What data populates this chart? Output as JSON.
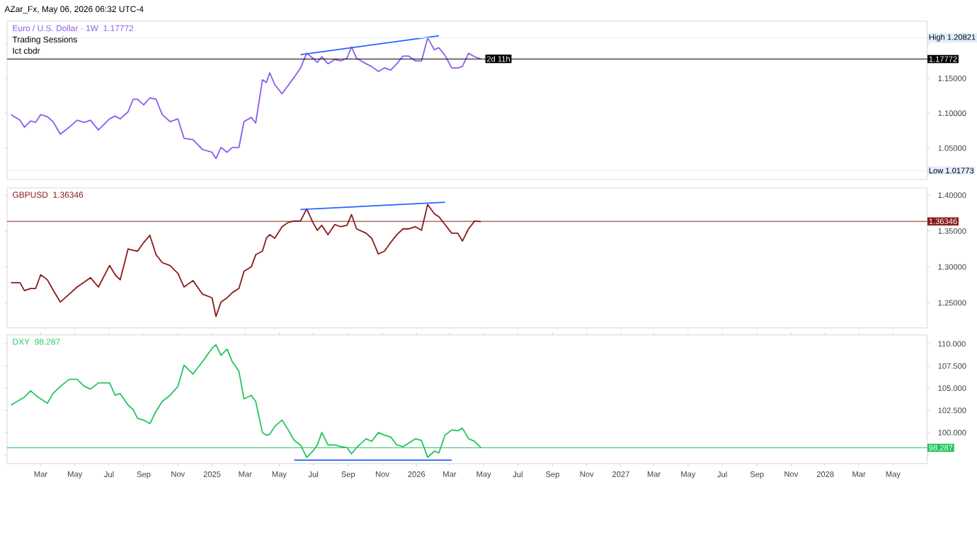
{
  "chart_data": [
    {
      "type": "line",
      "title": "AZar_Fx, May 06, 2026 06:32 UTC-4",
      "subtitle": "1.17772",
      "legend": "top left",
      "tick_labels": "y",
      "annotations": [
        "Trading Sessions",
        "Ict cbdr",
        {
          "text": "2d 11h",
          "x": "2026-04-26",
          "y": 1.178
        }
      ],
      "xlim": [
        "2024-01-01",
        "2028-07-01"
      ],
      "ylim": [
        1.005,
        1.232
      ],
      "yticks": [
        {
          "value": 1.05,
          "label": "1.05000"
        },
        {
          "value": 1.1,
          "label": "1.10000"
        },
        {
          "value": 1.15,
          "label": "1.15000"
        },
        {
          "value": 1.2,
          "label": null
        }
      ],
      "x": [
        "2024-01-08",
        "2024-01-24",
        "2024-02-01",
        "2024-02-12",
        "2024-02-21",
        "2024-03-01",
        "2024-03-13",
        "2024-03-23",
        "2024-04-05",
        "2024-04-21",
        "2024-05-05",
        "2024-05-18",
        "2024-05-29",
        "2024-06-12",
        "2024-07-02",
        "2024-07-12",
        "2024-07-21",
        "2024-08-04",
        "2024-08-13",
        "2024-08-21",
        "2024-09-01",
        "2024-09-12",
        "2024-09-23",
        "2024-10-04",
        "2024-10-18",
        "2024-11-01",
        "2024-11-12",
        "2024-11-28",
        "2024-12-15",
        "2025-01-01",
        "2025-01-08",
        "2025-01-17",
        "2025-01-28",
        "2025-02-06",
        "2025-02-18",
        "2025-02-27",
        "2025-03-12",
        "2025-03-20",
        "2025-04-01",
        "2025-04-08",
        "2025-04-14",
        "2025-04-23",
        "2025-05-06",
        "2025-05-17",
        "2025-05-28",
        "2025-06-08",
        "2025-06-19",
        "2025-06-30",
        "2025-07-08",
        "2025-07-16",
        "2025-07-27",
        "2025-08-08",
        "2025-08-19",
        "2025-08-30",
        "2025-09-07",
        "2025-09-16",
        "2025-10-03",
        "2025-10-13",
        "2025-10-25",
        "2025-11-05",
        "2025-11-16",
        "2025-11-27",
        "2025-12-08",
        "2025-12-18",
        "2025-12-30",
        "2026-01-10",
        "2026-01-21",
        "2026-02-02",
        "2026-02-10",
        "2026-02-21",
        "2026-03-05",
        "2026-03-16",
        "2026-03-24",
        "2026-04-04",
        "2026-04-15",
        "2026-04-26"
      ],
      "series": [
        {
          "name": "Euro / U.S. Dollar · 1W",
          "color": "#8a5cf0",
          "values": [
            1.098,
            1.09,
            1.08,
            1.089,
            1.087,
            1.098,
            1.095,
            1.088,
            1.07,
            1.08,
            1.09,
            1.087,
            1.09,
            1.076,
            1.092,
            1.096,
            1.092,
            1.102,
            1.12,
            1.12,
            1.112,
            1.122,
            1.12,
            1.098,
            1.088,
            1.092,
            1.064,
            1.062,
            1.048,
            1.044,
            1.035,
            1.051,
            1.044,
            1.051,
            1.051,
            1.088,
            1.094,
            1.086,
            1.148,
            1.144,
            1.158,
            1.141,
            1.128,
            1.14,
            1.152,
            1.165,
            1.186,
            1.179,
            1.173,
            1.181,
            1.171,
            1.177,
            1.175,
            1.179,
            1.195,
            1.179,
            1.171,
            1.167,
            1.16,
            1.165,
            1.162,
            1.171,
            1.182,
            1.182,
            1.175,
            1.175,
            1.208,
            1.191,
            1.194,
            1.183,
            1.165,
            1.165,
            1.167,
            1.186,
            1.181,
            1.178
          ]
        },
        {
          "type": "line",
          "color": "#2962ff",
          "x": [
            "2025-06-08",
            "2026-02-10"
          ],
          "values": [
            1.184,
            1.211
          ]
        }
      ],
      "ref_lines": [
        {
          "axis": "y",
          "value": 1.20821,
          "label": "High 1.20821",
          "color": "#e3eefb"
        },
        {
          "axis": "y",
          "value": 1.17772,
          "label": "1.17772",
          "color": "#000000"
        },
        {
          "axis": "y",
          "value": 1.01773,
          "label": "Low 1.01773",
          "color": "#e3eefb"
        }
      ]
    },
    {
      "type": "line",
      "subtitle": "1.36346",
      "legend": "top left",
      "tick_labels": "y",
      "xlim": [
        "2024-01-01",
        "2028-07-01"
      ],
      "ylim": [
        1.215,
        1.41
      ],
      "yticks": [
        {
          "value": 1.25,
          "label": "1.25000"
        },
        {
          "value": 1.3,
          "label": "1.30000"
        },
        {
          "value": 1.35,
          "label": "1.35000"
        },
        {
          "value": 1.4,
          "label": "1.40000"
        }
      ],
      "x": [
        "2024-01-08",
        "2024-01-24",
        "2024-02-01",
        "2024-02-12",
        "2024-02-21",
        "2024-03-01",
        "2024-03-13",
        "2024-03-23",
        "2024-04-05",
        "2024-04-21",
        "2024-05-05",
        "2024-05-18",
        "2024-05-29",
        "2024-06-12",
        "2024-07-02",
        "2024-07-12",
        "2024-07-21",
        "2024-08-04",
        "2024-08-13",
        "2024-08-21",
        "2024-09-01",
        "2024-09-12",
        "2024-09-23",
        "2024-10-04",
        "2024-10-18",
        "2024-11-01",
        "2024-11-12",
        "2024-11-28",
        "2024-12-15",
        "2025-01-01",
        "2025-01-08",
        "2025-01-17",
        "2025-01-28",
        "2025-02-06",
        "2025-02-18",
        "2025-02-27",
        "2025-03-12",
        "2025-03-20",
        "2025-04-01",
        "2025-04-08",
        "2025-04-14",
        "2025-04-23",
        "2025-05-06",
        "2025-05-17",
        "2025-05-28",
        "2025-06-08",
        "2025-06-19",
        "2025-06-30",
        "2025-07-08",
        "2025-07-16",
        "2025-07-27",
        "2025-08-08",
        "2025-08-19",
        "2025-08-30",
        "2025-09-07",
        "2025-09-16",
        "2025-10-03",
        "2025-10-13",
        "2025-10-25",
        "2025-11-05",
        "2025-11-16",
        "2025-11-27",
        "2025-12-08",
        "2025-12-18",
        "2025-12-30",
        "2026-01-10",
        "2026-01-21",
        "2026-02-02",
        "2026-02-10",
        "2026-02-21",
        "2026-03-05",
        "2026-03-16",
        "2026-03-24",
        "2026-04-04",
        "2026-04-15",
        "2026-04-26"
      ],
      "series": [
        {
          "name": "GBPUSD",
          "color": "#8b1a1a",
          "values": [
            1.278,
            1.278,
            1.267,
            1.27,
            1.27,
            1.289,
            1.282,
            1.268,
            1.251,
            1.262,
            1.272,
            1.279,
            1.285,
            1.272,
            1.302,
            1.289,
            1.282,
            1.325,
            1.323,
            1.322,
            1.334,
            1.344,
            1.317,
            1.306,
            1.302,
            1.291,
            1.272,
            1.281,
            1.262,
            1.257,
            1.231,
            1.251,
            1.257,
            1.264,
            1.27,
            1.294,
            1.3,
            1.317,
            1.322,
            1.34,
            1.345,
            1.34,
            1.356,
            1.362,
            1.364,
            1.364,
            1.381,
            1.362,
            1.351,
            1.358,
            1.345,
            1.359,
            1.356,
            1.358,
            1.373,
            1.353,
            1.347,
            1.34,
            1.318,
            1.322,
            1.334,
            1.345,
            1.353,
            1.353,
            1.356,
            1.351,
            1.387,
            1.374,
            1.37,
            1.359,
            1.347,
            1.347,
            1.336,
            1.353,
            1.364,
            1.363
          ]
        },
        {
          "type": "line",
          "color": "#2962ff",
          "x": [
            "2025-06-08",
            "2026-02-21"
          ],
          "values": [
            1.38,
            1.39
          ]
        }
      ],
      "ref_lines": [
        {
          "axis": "y",
          "value": 1.36346,
          "label": "1.36346",
          "color": "#8b1a1a"
        }
      ]
    },
    {
      "type": "line",
      "subtitle": "98.287",
      "legend": "top left",
      "xlim": [
        "2024-01-01",
        "2028-07-01"
      ],
      "ylim": [
        96.5,
        111
      ],
      "xticks": [
        {
          "value": "2024-03-01",
          "label": "Mar"
        },
        {
          "value": "2024-05-01",
          "label": "May"
        },
        {
          "value": "2024-07-01",
          "label": "Jul"
        },
        {
          "value": "2024-09-01",
          "label": "Sep"
        },
        {
          "value": "2024-11-01",
          "label": "Nov"
        },
        {
          "value": "2025-01-01",
          "label": "2025"
        },
        {
          "value": "2025-03-01",
          "label": "Mar"
        },
        {
          "value": "2025-05-01",
          "label": "May"
        },
        {
          "value": "2025-07-01",
          "label": "Jul"
        },
        {
          "value": "2025-09-01",
          "label": "Sep"
        },
        {
          "value": "2025-11-01",
          "label": "Nov"
        },
        {
          "value": "2026-01-01",
          "label": "2026"
        },
        {
          "value": "2026-03-01",
          "label": "Mar"
        },
        {
          "value": "2026-05-01",
          "label": "May"
        },
        {
          "value": "2026-07-01",
          "label": "Jul"
        },
        {
          "value": "2026-09-01",
          "label": "Sep"
        },
        {
          "value": "2026-11-01",
          "label": "Nov"
        },
        {
          "value": "2027-01-01",
          "label": "2027"
        },
        {
          "value": "2027-03-01",
          "label": "Mar"
        },
        {
          "value": "2027-05-01",
          "label": "May"
        },
        {
          "value": "2027-07-01",
          "label": "Jul"
        },
        {
          "value": "2027-09-01",
          "label": "Sep"
        },
        {
          "value": "2027-11-01",
          "label": "Nov"
        },
        {
          "value": "2028-01-01",
          "label": "2028"
        },
        {
          "value": "2028-03-01",
          "label": "Mar"
        },
        {
          "value": "2028-05-01",
          "label": "May"
        }
      ],
      "yticks": [
        {
          "value": 97.5,
          "label": null
        },
        {
          "value": 100,
          "label": "100.000"
        },
        {
          "value": 102.5,
          "label": "102.500"
        },
        {
          "value": 105,
          "label": "105.000"
        },
        {
          "value": 107.5,
          "label": "107.500"
        },
        {
          "value": 110,
          "label": "110.000"
        }
      ],
      "x": [
        "2024-01-08",
        "2024-01-24",
        "2024-02-01",
        "2024-02-12",
        "2024-02-21",
        "2024-03-01",
        "2024-03-13",
        "2024-03-23",
        "2024-04-05",
        "2024-04-21",
        "2024-05-05",
        "2024-05-18",
        "2024-05-29",
        "2024-06-12",
        "2024-07-02",
        "2024-07-12",
        "2024-07-21",
        "2024-08-04",
        "2024-08-13",
        "2024-08-21",
        "2024-09-01",
        "2024-09-12",
        "2024-09-23",
        "2024-10-04",
        "2024-10-18",
        "2024-11-01",
        "2024-11-12",
        "2024-11-28",
        "2024-12-15",
        "2025-01-01",
        "2025-01-08",
        "2025-01-17",
        "2025-01-28",
        "2025-02-06",
        "2025-02-18",
        "2025-02-27",
        "2025-03-12",
        "2025-03-20",
        "2025-04-01",
        "2025-04-08",
        "2025-04-14",
        "2025-04-23",
        "2025-05-06",
        "2025-05-17",
        "2025-05-28",
        "2025-06-08",
        "2025-06-19",
        "2025-06-30",
        "2025-07-08",
        "2025-07-16",
        "2025-07-27",
        "2025-08-08",
        "2025-08-19",
        "2025-08-30",
        "2025-09-07",
        "2025-09-16",
        "2025-10-03",
        "2025-10-13",
        "2025-10-25",
        "2025-11-05",
        "2025-11-16",
        "2025-11-27",
        "2025-12-08",
        "2025-12-18",
        "2025-12-30",
        "2026-01-10",
        "2026-01-21",
        "2026-02-02",
        "2026-02-10",
        "2026-02-21",
        "2026-03-05",
        "2026-03-16",
        "2026-03-24",
        "2026-04-04",
        "2026-04-15",
        "2026-04-26"
      ],
      "series": [
        {
          "name": "DXY",
          "color": "#22c55e",
          "values": [
            103.1,
            103.7,
            104.0,
            104.7,
            104.2,
            103.8,
            103.3,
            104.4,
            105.2,
            106.0,
            106.0,
            105.2,
            104.9,
            105.6,
            105.6,
            104.2,
            104.4,
            103.1,
            102.6,
            101.6,
            101.4,
            101.0,
            102.4,
            103.5,
            104.2,
            105.2,
            107.6,
            106.6,
            108.0,
            109.5,
            109.9,
            108.7,
            109.4,
            108.0,
            106.9,
            103.8,
            104.2,
            103.5,
            100.0,
            99.7,
            99.8,
            100.7,
            101.4,
            100.3,
            99.1,
            98.6,
            97.2,
            97.9,
            98.6,
            100.0,
            98.6,
            98.6,
            98.4,
            98.3,
            97.6,
            98.3,
            99.3,
            99.0,
            100.0,
            99.7,
            99.5,
            98.6,
            98.4,
            98.8,
            99.3,
            99.1,
            97.2,
            97.9,
            97.7,
            99.7,
            100.3,
            100.2,
            100.5,
            99.3,
            99.0,
            98.3
          ]
        },
        {
          "type": "line",
          "color": "#2962ff",
          "x": [
            "2025-05-28",
            "2026-03-05"
          ],
          "values": [
            96.9,
            96.9
          ]
        }
      ],
      "ref_lines": [
        {
          "axis": "y",
          "value": 98.287,
          "label": "98.287",
          "color": "#22c55e"
        }
      ]
    }
  ]
}
